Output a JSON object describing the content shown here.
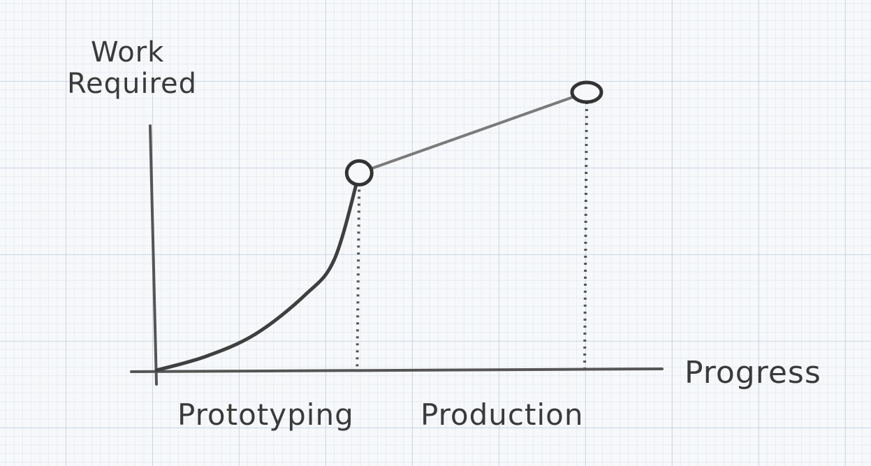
{
  "chart_data": {
    "type": "line",
    "ylabel_lines": [
      "Work",
      "Required"
    ],
    "xlabel": "Progress",
    "phases": [
      {
        "label": "Prototyping",
        "from": 0,
        "to": 0.41
      },
      {
        "label": "Production",
        "from": 0.41,
        "to": 0.87
      }
    ],
    "xlim": [
      0,
      1
    ],
    "ylim": [
      0,
      1
    ],
    "series": [
      {
        "style": "curved",
        "points": [
          [
            0.0,
            0.0
          ],
          [
            0.1,
            0.05
          ],
          [
            0.2,
            0.13
          ],
          [
            0.3,
            0.27
          ],
          [
            0.36,
            0.4
          ],
          [
            0.41,
            0.71
          ]
        ]
      },
      {
        "style": "straight",
        "points": [
          [
            0.41,
            0.71
          ],
          [
            0.87,
            1.0
          ]
        ]
      }
    ],
    "markers": [
      [
        0.41,
        0.71
      ],
      [
        0.87,
        1.0
      ]
    ],
    "grid": true
  }
}
